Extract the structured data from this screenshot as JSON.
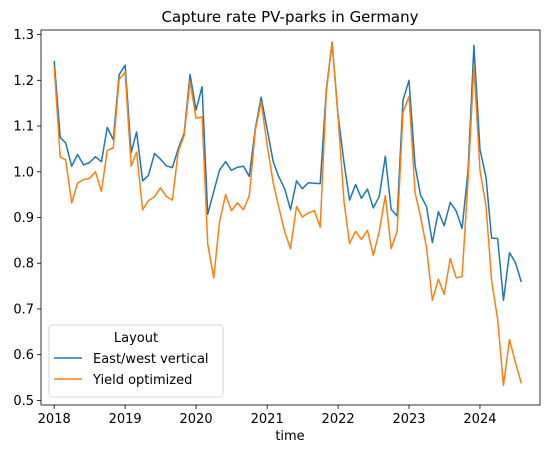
{
  "chart_data": {
    "type": "line",
    "title": "Capture rate PV-parks in Germany",
    "xlabel": "time",
    "ylabel": "",
    "xlim": [
      "2017-10-25",
      "2024-11-05"
    ],
    "ylim": [
      0.49,
      1.31
    ],
    "x_ticks": [
      {
        "date": "2018-01-01",
        "label": "2018"
      },
      {
        "date": "2019-01-01",
        "label": "2019"
      },
      {
        "date": "2020-01-01",
        "label": "2020"
      },
      {
        "date": "2021-01-01",
        "label": "2021"
      },
      {
        "date": "2022-01-01",
        "label": "2022"
      },
      {
        "date": "2023-01-01",
        "label": "2023"
      },
      {
        "date": "2024-01-01",
        "label": "2024"
      }
    ],
    "y_ticks": [
      0.5,
      0.6,
      0.7,
      0.8,
      0.9,
      1.0,
      1.1,
      1.2,
      1.3
    ],
    "y_tick_labels": [
      "0.5",
      "0.6",
      "0.7",
      "0.8",
      "0.9",
      "1.0",
      "1.1",
      "1.2",
      "1.3"
    ],
    "grid": false,
    "legend": {
      "title": "Layout",
      "position": "lower-left"
    },
    "x": [
      "2018-01",
      "2018-02",
      "2018-03",
      "2018-04",
      "2018-05",
      "2018-06",
      "2018-07",
      "2018-08",
      "2018-09",
      "2018-10",
      "2018-11",
      "2018-12",
      "2019-01",
      "2019-02",
      "2019-03",
      "2019-04",
      "2019-05",
      "2019-06",
      "2019-07",
      "2019-08",
      "2019-09",
      "2019-10",
      "2019-11",
      "2019-12",
      "2020-01",
      "2020-02",
      "2020-03",
      "2020-04",
      "2020-05",
      "2020-06",
      "2020-07",
      "2020-08",
      "2020-09",
      "2020-10",
      "2020-11",
      "2020-12",
      "2021-01",
      "2021-02",
      "2021-03",
      "2021-04",
      "2021-05",
      "2021-06",
      "2021-07",
      "2021-08",
      "2021-09",
      "2021-10",
      "2021-11",
      "2021-12",
      "2022-01",
      "2022-02",
      "2022-03",
      "2022-04",
      "2022-05",
      "2022-06",
      "2022-07",
      "2022-08",
      "2022-09",
      "2022-10",
      "2022-11",
      "2022-12",
      "2023-01",
      "2023-02",
      "2023-03",
      "2023-04",
      "2023-05",
      "2023-06",
      "2023-07",
      "2023-08",
      "2023-09",
      "2023-10",
      "2023-11",
      "2023-12",
      "2024-01",
      "2024-02",
      "2024-03",
      "2024-04",
      "2024-05",
      "2024-06",
      "2024-07",
      "2024-08"
    ],
    "series": [
      {
        "name": "East/west vertical",
        "color": "#1f77b4",
        "values": [
          1.242,
          1.075,
          1.063,
          1.012,
          1.038,
          1.015,
          1.02,
          1.033,
          1.022,
          1.097,
          1.07,
          1.212,
          1.233,
          1.042,
          1.087,
          0.98,
          0.992,
          1.04,
          1.028,
          1.013,
          1.009,
          1.05,
          1.085,
          1.213,
          1.135,
          1.186,
          0.907,
          0.957,
          1.004,
          1.022,
          1.003,
          1.01,
          1.012,
          0.99,
          1.095,
          1.163,
          1.093,
          1.022,
          0.99,
          0.963,
          0.917,
          0.98,
          0.963,
          0.976,
          0.975,
          0.974,
          1.178,
          1.283,
          1.123,
          1.018,
          0.938,
          0.972,
          0.942,
          0.962,
          0.921,
          0.946,
          1.034,
          0.918,
          0.903,
          1.157,
          1.2,
          1.014,
          0.949,
          0.924,
          0.845,
          0.913,
          0.882,
          0.933,
          0.914,
          0.876,
          1.004,
          1.276,
          1.049,
          0.988,
          0.855,
          0.854,
          0.719,
          0.823,
          0.802,
          0.759
        ]
      },
      {
        "name": "Yield optimized",
        "color": "#ff7f0e",
        "values": [
          1.228,
          1.032,
          1.026,
          0.932,
          0.975,
          0.983,
          0.985,
          1.0,
          0.957,
          1.047,
          1.052,
          1.202,
          1.218,
          1.012,
          1.043,
          0.917,
          0.937,
          0.945,
          0.965,
          0.946,
          0.938,
          1.043,
          1.08,
          1.198,
          1.117,
          1.12,
          0.842,
          0.768,
          0.891,
          0.95,
          0.915,
          0.932,
          0.917,
          0.948,
          1.091,
          1.153,
          1.058,
          0.976,
          0.924,
          0.869,
          0.832,
          0.924,
          0.901,
          0.91,
          0.915,
          0.879,
          1.172,
          1.284,
          1.118,
          0.932,
          0.843,
          0.87,
          0.852,
          0.872,
          0.817,
          0.87,
          0.948,
          0.832,
          0.87,
          1.13,
          1.165,
          0.955,
          0.902,
          0.835,
          0.719,
          0.765,
          0.732,
          0.81,
          0.768,
          0.771,
          0.983,
          1.232,
          1.003,
          0.926,
          0.762,
          0.677,
          0.533,
          0.633,
          0.584,
          0.537
        ]
      }
    ]
  }
}
